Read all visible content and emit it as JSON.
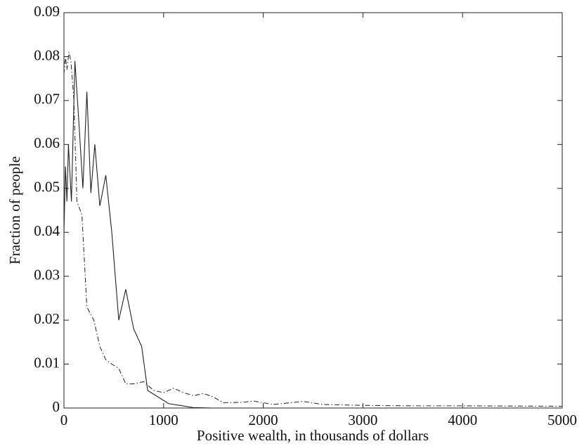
{
  "chart_data": {
    "type": "line",
    "x_label": "Positive wealth, in thousands of dollars",
    "y_label": "Fraction of people",
    "xlim": [
      0,
      5000
    ],
    "xticks": [
      0,
      1000,
      2000,
      3000,
      4000,
      5000
    ],
    "ylim": [
      0,
      0.09
    ],
    "yticks": [
      0,
      0.01,
      0.02,
      0.03,
      0.04,
      0.05,
      0.06,
      0.07,
      0.08,
      0.09
    ],
    "series": [
      {
        "color": "#222222",
        "dash": "solid",
        "x": [
          0,
          15,
          30,
          45,
          75,
          110,
          150,
          190,
          230,
          270,
          310,
          360,
          420,
          480,
          550,
          620,
          700,
          780,
          840,
          1050,
          1300,
          1500,
          2000,
          5000
        ],
        "values": [
          0.04,
          0.055,
          0.047,
          0.06,
          0.047,
          0.079,
          0.065,
          0.05,
          0.072,
          0.049,
          0.06,
          0.046,
          0.053,
          0.04,
          0.02,
          0.027,
          0.018,
          0.014,
          0.004,
          0.001,
          0.0001,
          0,
          0,
          0
        ]
      },
      {
        "color": "#333333",
        "dash": "dashdot",
        "x": [
          0,
          15,
          30,
          50,
          70,
          100,
          130,
          180,
          230,
          300,
          360,
          420,
          480,
          550,
          620,
          700,
          800,
          900,
          1000,
          1100,
          1200,
          1300,
          1400,
          1500,
          1600,
          1800,
          1900,
          2100,
          2400,
          2600,
          3000,
          3500,
          4000,
          5000
        ],
        "values": [
          0.076,
          0.08,
          0.077,
          0.081,
          0.079,
          0.07,
          0.047,
          0.044,
          0.023,
          0.02,
          0.014,
          0.011,
          0.01,
          0.009,
          0.0055,
          0.0055,
          0.006,
          0.004,
          0.0035,
          0.0045,
          0.0035,
          0.0028,
          0.0033,
          0.0025,
          0.0012,
          0.0013,
          0.0016,
          0.0008,
          0.0015,
          0.0008,
          0.0006,
          0.0005,
          0.0005,
          0.0004
        ]
      }
    ]
  }
}
